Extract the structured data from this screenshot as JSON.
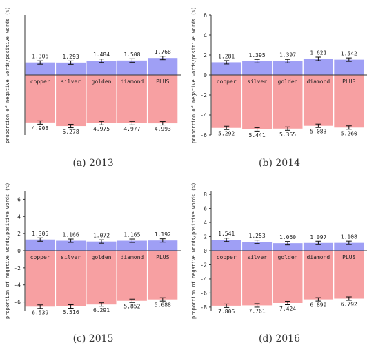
{
  "chart_data": [
    {
      "type": "bar",
      "caption": "(a) 2013",
      "categories": [
        "copper",
        "silver",
        "golden",
        "diamond",
        "PLUS"
      ],
      "series": [
        {
          "values": [
            1.306,
            1.293,
            1.484,
            1.508,
            1.768
          ],
          "value_labels": [
            "1.306",
            "1.293",
            "1.484",
            "1.508",
            "1.768"
          ],
          "color": "#9f9ff5"
        },
        {
          "values": [
            -4.908,
            -5.278,
            -4.975,
            -4.977,
            -4.993
          ],
          "value_labels": [
            "4.908",
            "5.278",
            "4.975",
            "4.977",
            "4.993"
          ],
          "color": "#f7a0a2"
        }
      ],
      "ylabel": "proportion of negative words/positive words (%)",
      "ylim": [
        -6.2,
        6.2
      ],
      "yticks": [],
      "error_bars": true,
      "grid": false,
      "legend": "none"
    },
    {
      "type": "bar",
      "caption": "(b) 2014",
      "categories": [
        "copper",
        "silver",
        "golden",
        "diamond",
        "PLUS"
      ],
      "series": [
        {
          "values": [
            1.281,
            1.395,
            1.397,
            1.621,
            1.542
          ],
          "value_labels": [
            "1.281",
            "1.395",
            "1.397",
            "1.621",
            "1.542"
          ],
          "color": "#9f9ff5"
        },
        {
          "values": [
            -5.292,
            -5.441,
            -5.365,
            -5.083,
            -5.26
          ],
          "value_labels": [
            "5.292",
            "5.441",
            "5.365",
            "5.083",
            "5.260"
          ],
          "color": "#f7a0a2"
        }
      ],
      "ylabel": "proportion of negative words/positive words (%)",
      "ylim": [
        -6,
        6
      ],
      "yticks": [
        6,
        4,
        2,
        0,
        -2,
        -4,
        -6
      ],
      "error_bars": true,
      "grid": false,
      "legend": "none"
    },
    {
      "type": "bar",
      "caption": "(c) 2015",
      "categories": [
        "copper",
        "silver",
        "golden",
        "diamond",
        "PLUS"
      ],
      "series": [
        {
          "values": [
            1.306,
            1.166,
            1.072,
            1.165,
            1.192
          ],
          "value_labels": [
            "1.306",
            "1.166",
            "1.072",
            "1.165",
            "1.192"
          ],
          "color": "#9f9ff5"
        },
        {
          "values": [
            -6.539,
            -6.516,
            -6.291,
            -5.852,
            -5.688
          ],
          "value_labels": [
            "6.539",
            "6.516",
            "6.291",
            "5.852",
            "5.688"
          ],
          "color": "#f7a0a2"
        }
      ],
      "ylabel": "proportion of negative words/positive words (%)",
      "ylim": [
        -7,
        7
      ],
      "yticks": [
        6,
        4,
        2,
        0,
        -2,
        -4,
        -6
      ],
      "error_bars": true,
      "grid": false,
      "legend": "none"
    },
    {
      "type": "bar",
      "caption": "(d) 2016",
      "categories": [
        "copper",
        "silver",
        "golden",
        "diamond",
        "PLUS"
      ],
      "series": [
        {
          "values": [
            1.541,
            1.253,
            1.06,
            1.097,
            1.108
          ],
          "value_labels": [
            "1.541",
            "1.253",
            "1.060",
            "1.097",
            "1.108"
          ],
          "color": "#9f9ff5"
        },
        {
          "values": [
            -7.806,
            -7.761,
            -7.424,
            -6.899,
            -6.792
          ],
          "value_labels": [
            "7.806",
            "7.761",
            "7.424",
            "6.899",
            "6.792"
          ],
          "color": "#f7a0a2"
        }
      ],
      "ylabel": "proportion of negative words/positive words (%)",
      "ylim": [
        -8.5,
        8.5
      ],
      "yticks": [
        8,
        6,
        4,
        2,
        0,
        -2,
        -4,
        -6,
        -8
      ],
      "error_bars": true,
      "grid": false,
      "legend": "none"
    }
  ]
}
